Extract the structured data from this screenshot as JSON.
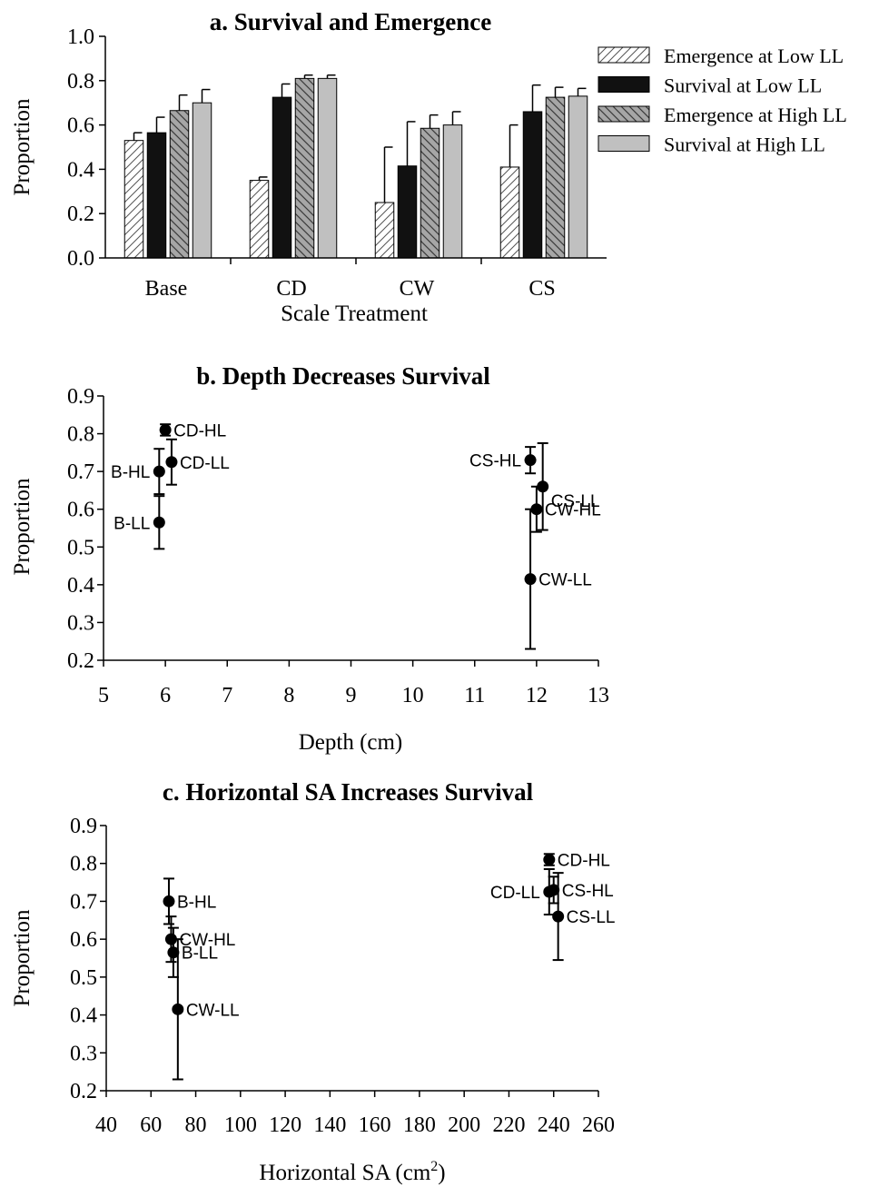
{
  "chart_data": [
    {
      "type": "bar",
      "title": "a. Survival and Emergence",
      "xlabel": "Scale Treatment",
      "ylabel": "Proportion",
      "ylim": [
        0,
        1.0
      ],
      "yticks": [
        "0.0",
        "0.2",
        "0.4",
        "0.6",
        "0.8",
        "1.0"
      ],
      "grid": false,
      "legend_position": "top-right",
      "categories": [
        "Base",
        "CD",
        "CW",
        "CS"
      ],
      "series": [
        {
          "name": "Emergence at Low LL",
          "pattern": "hatch-forward",
          "color": "#ffffff",
          "values": [
            0.53,
            0.35,
            0.25,
            0.41
          ],
          "errors": [
            0.035,
            0.015,
            0.25,
            0.19
          ]
        },
        {
          "name": "Survival at Low LL",
          "pattern": "solid",
          "color": "#111111",
          "values": [
            0.565,
            0.725,
            0.415,
            0.66
          ],
          "errors": [
            0.07,
            0.06,
            0.2,
            0.12
          ]
        },
        {
          "name": "Emergence at High LL",
          "pattern": "hatch-back",
          "color": "#a6a6a6",
          "values": [
            0.665,
            0.81,
            0.585,
            0.725
          ],
          "errors": [
            0.07,
            0.015,
            0.06,
            0.045
          ]
        },
        {
          "name": "Survival at High LL",
          "pattern": "solid-light",
          "color": "#c0c0c0",
          "values": [
            0.7,
            0.81,
            0.6,
            0.73
          ],
          "errors": [
            0.06,
            0.015,
            0.06,
            0.035
          ]
        }
      ]
    },
    {
      "type": "scatter",
      "title": "b. Depth Decreases Survival",
      "xlabel": "Depth (cm)",
      "ylabel": "Proportion",
      "xlim": [
        5,
        13
      ],
      "ylim": [
        0.2,
        0.9
      ],
      "xticks": [
        "5",
        "6",
        "7",
        "8",
        "9",
        "10",
        "11",
        "12",
        "13"
      ],
      "yticks": [
        "0.2",
        "0.3",
        "0.4",
        "0.5",
        "0.6",
        "0.7",
        "0.8",
        "0.9"
      ],
      "grid": false,
      "points": [
        {
          "label": "CD-HL",
          "x": 6.0,
          "y": 0.81,
          "err": 0.015,
          "label_side": "right"
        },
        {
          "label": "CD-LL",
          "x": 6.1,
          "y": 0.725,
          "err": 0.06,
          "label_side": "right"
        },
        {
          "label": "B-HL",
          "x": 5.9,
          "y": 0.7,
          "err": 0.06,
          "label_side": "left"
        },
        {
          "label": "B-LL",
          "x": 5.9,
          "y": 0.565,
          "err": 0.07,
          "label_side": "left"
        },
        {
          "label": "CS-HL",
          "x": 11.9,
          "y": 0.73,
          "err": 0.035,
          "label_side": "left"
        },
        {
          "label": "CS-LL",
          "x": 12.1,
          "y": 0.66,
          "err": 0.115,
          "label_side": "below-right"
        },
        {
          "label": "CW-HL",
          "x": 12.0,
          "y": 0.6,
          "err": 0.06,
          "label_side": "right"
        },
        {
          "label": "CW-LL",
          "x": 11.9,
          "y": 0.415,
          "err": 0.185,
          "label_side": "right"
        }
      ]
    },
    {
      "type": "scatter",
      "title": "c. Horizontal SA Increases Survival",
      "xlabel": "Horizontal SA (cm",
      "xlabel_sup": "2",
      "xlabel_end": ")",
      "ylabel": "Proportion",
      "xlim": [
        40,
        260
      ],
      "ylim": [
        0.2,
        0.9
      ],
      "xticks": [
        "40",
        "60",
        "80",
        "100",
        "120",
        "140",
        "160",
        "180",
        "200",
        "220",
        "240",
        "260"
      ],
      "yticks": [
        "0.2",
        "0.3",
        "0.4",
        "0.5",
        "0.6",
        "0.7",
        "0.8",
        "0.9"
      ],
      "grid": false,
      "points": [
        {
          "label": "B-HL",
          "x": 68,
          "y": 0.7,
          "err": 0.06,
          "label_side": "right"
        },
        {
          "label": "CW-HL",
          "x": 69,
          "y": 0.6,
          "err": 0.06,
          "label_side": "right"
        },
        {
          "label": "B-LL",
          "x": 70,
          "y": 0.565,
          "err": 0.065,
          "label_side": "right"
        },
        {
          "label": "CW-LL",
          "x": 72,
          "y": 0.415,
          "err": 0.185,
          "label_side": "right"
        },
        {
          "label": "CD-HL",
          "x": 238,
          "y": 0.81,
          "err": 0.015,
          "label_side": "right"
        },
        {
          "label": "CD-LL",
          "x": 238,
          "y": 0.725,
          "err": 0.06,
          "label_side": "left"
        },
        {
          "label": "CS-HL",
          "x": 240,
          "y": 0.73,
          "err": 0.035,
          "label_side": "right"
        },
        {
          "label": "CS-LL",
          "x": 242,
          "y": 0.66,
          "err": 0.115,
          "label_side": "right"
        }
      ]
    }
  ]
}
